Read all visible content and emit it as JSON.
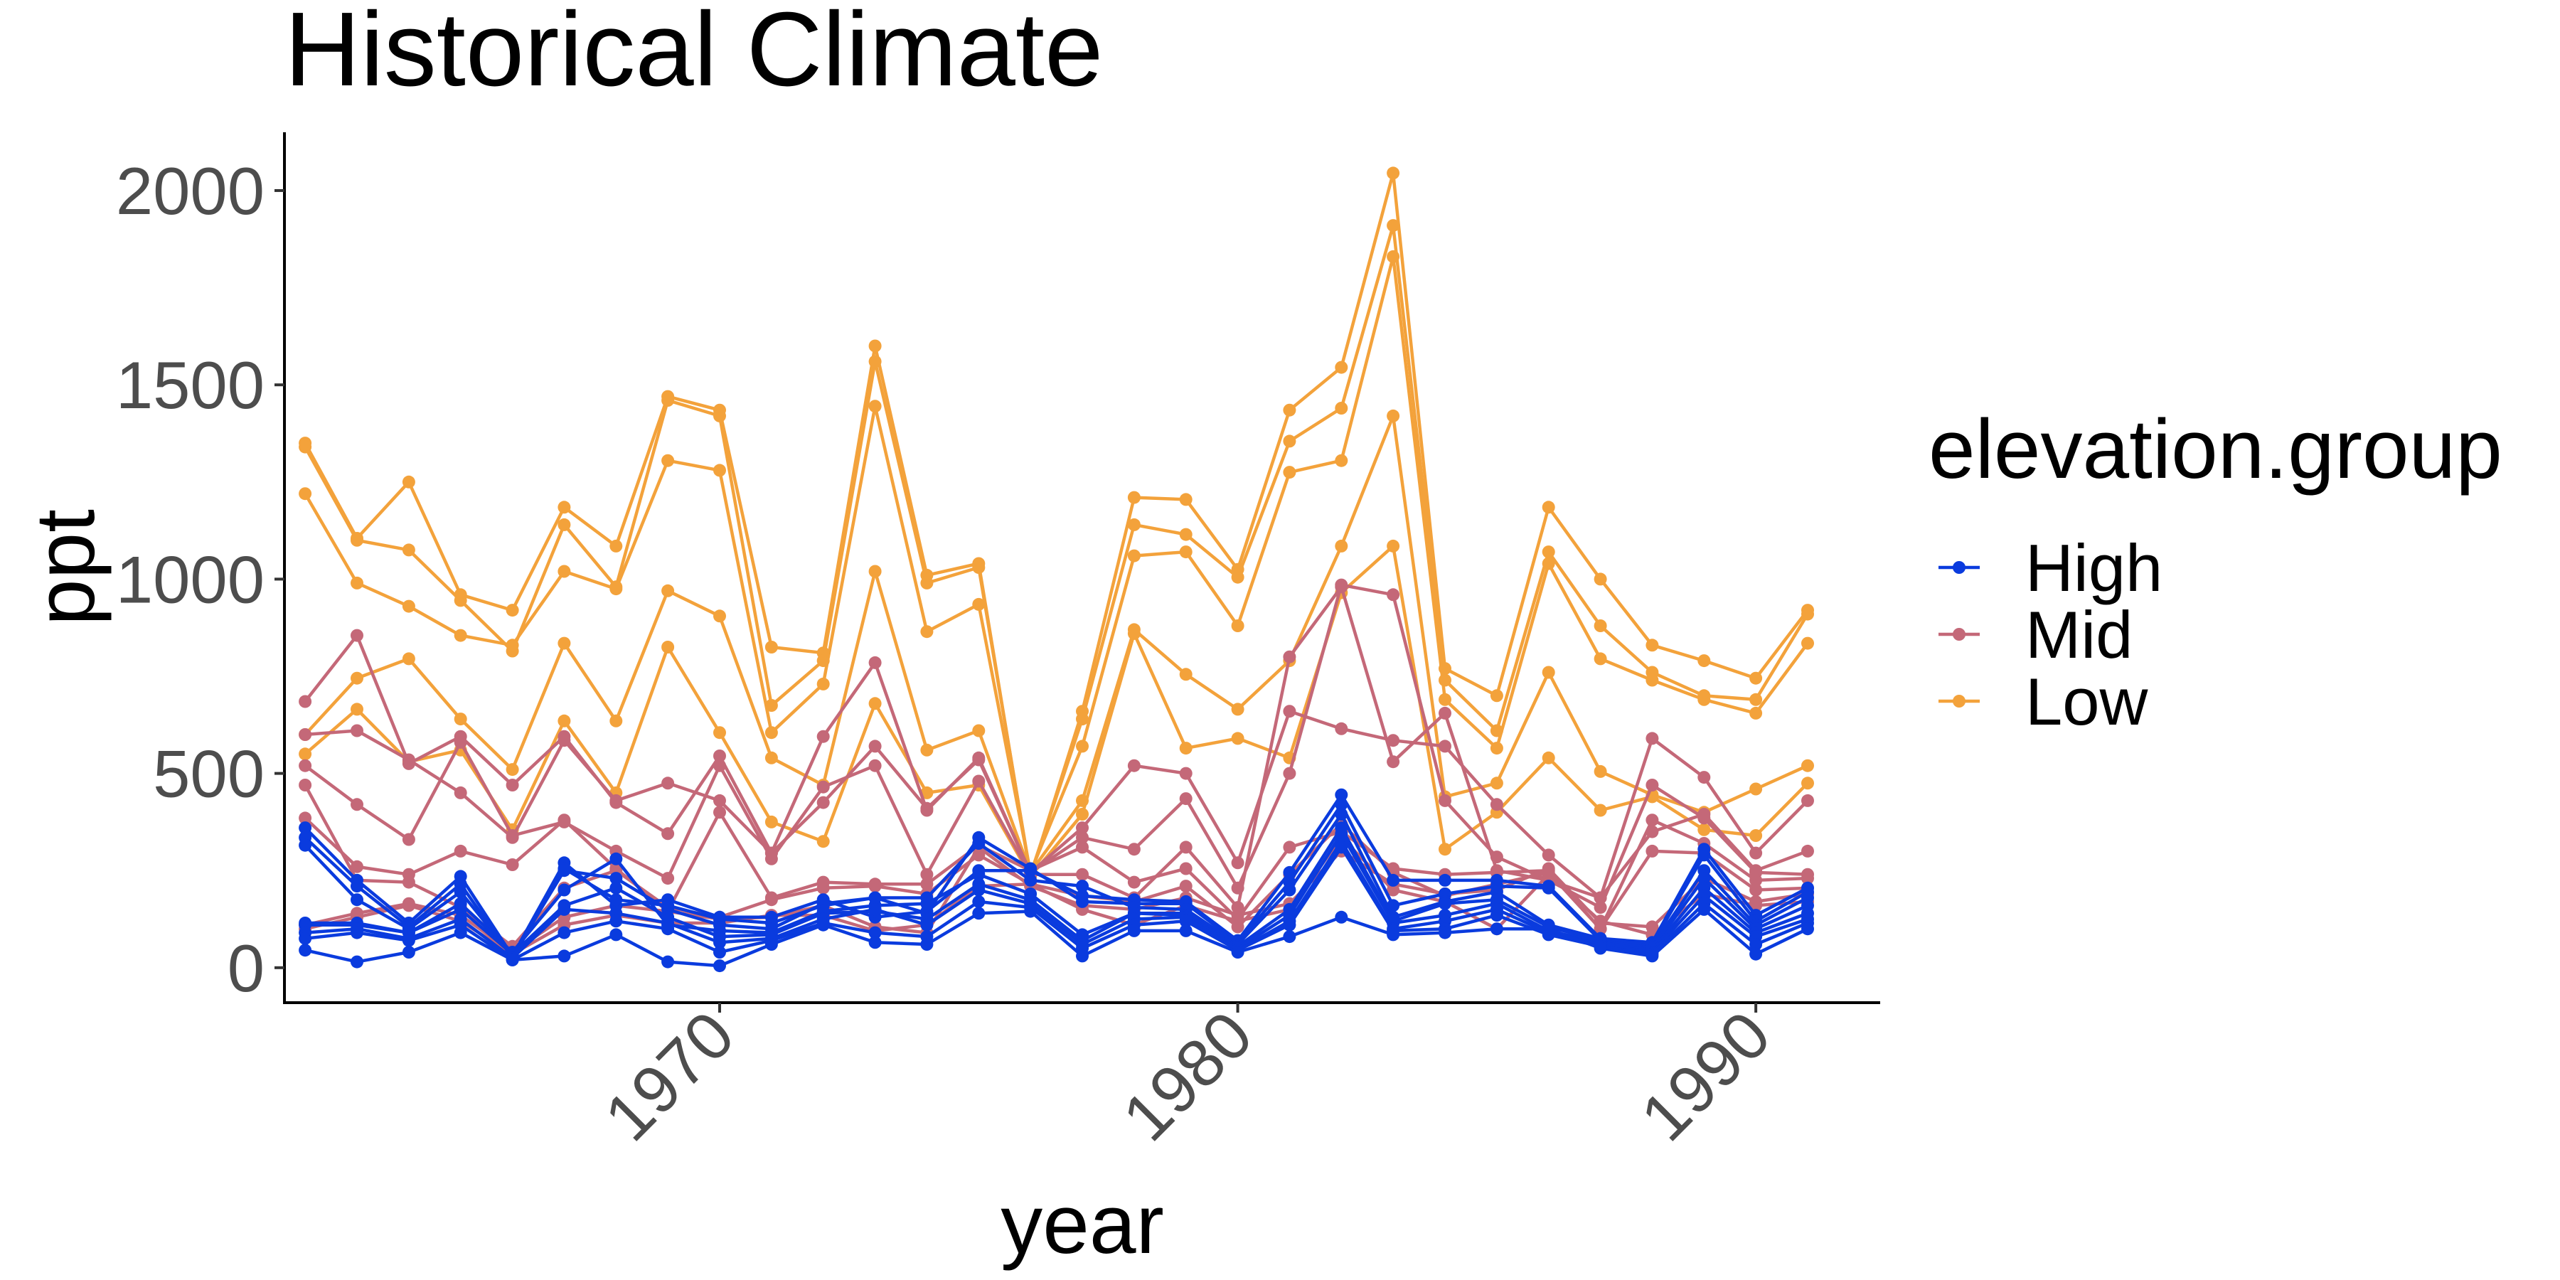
{
  "chart_data": {
    "type": "line",
    "title": "Historical Climate",
    "xlabel": "year",
    "ylabel": "ppt",
    "xlim": [
      1961.6,
      1992.4
    ],
    "ylim": [
      -90,
      2150
    ],
    "x_ticks": [
      1970,
      1980,
      1990
    ],
    "y_ticks": [
      0,
      500,
      1000,
      1500,
      2000
    ],
    "grid": false,
    "legend": {
      "title": "elevation.group",
      "position": "right",
      "entries": [
        {
          "label": "High",
          "color": "#0a3bde"
        },
        {
          "label": "Mid",
          "color": "#c46878"
        },
        {
          "label": "Low",
          "color": "#f3a23b"
        }
      ]
    },
    "x": [
      1962,
      1963,
      1964,
      1965,
      1966,
      1967,
      1968,
      1969,
      1970,
      1971,
      1972,
      1973,
      1974,
      1975,
      1976,
      1977,
      1978,
      1979,
      1980,
      1981,
      1982,
      1983,
      1984,
      1985,
      1986,
      1987,
      1988,
      1989,
      1990,
      1991
    ],
    "series": [
      {
        "group": "Low",
        "color": "#f3a23b",
        "values": [
          1350,
          1105,
          1250,
          960,
          920,
          1185,
          1085,
          1470,
          1435,
          825,
          810,
          1600,
          1010,
          1040,
          235,
          660,
          1210,
          1205,
          1025,
          1435,
          1545,
          2045,
          770,
          700,
          1185,
          1000,
          830,
          790,
          745,
          920
        ]
      },
      {
        "group": "Low",
        "color": "#f3a23b",
        "values": [
          1340,
          1100,
          1075,
          945,
          815,
          1140,
          980,
          1460,
          1420,
          675,
          790,
          1560,
          990,
          1030,
          240,
          640,
          1140,
          1115,
          1005,
          1355,
          1440,
          1910,
          740,
          610,
          1070,
          880,
          760,
          700,
          690,
          910
        ]
      },
      {
        "group": "Low",
        "color": "#f3a23b",
        "values": [
          1220,
          990,
          930,
          855,
          830,
          1020,
          975,
          1305,
          1280,
          605,
          730,
          1445,
          865,
          935,
          245,
          570,
          1060,
          1070,
          880,
          1275,
          1305,
          1830,
          690,
          565,
          1040,
          795,
          740,
          690,
          655,
          835
        ]
      },
      {
        "group": "Low",
        "color": "#f3a23b",
        "values": [
          600,
          745,
          795,
          640,
          510,
          835,
          635,
          970,
          905,
          540,
          470,
          1020,
          560,
          610,
          245,
          430,
          870,
          755,
          665,
          790,
          1085,
          1420,
          440,
          475,
          760,
          505,
          445,
          400,
          460,
          520
        ]
      },
      {
        "group": "Low",
        "color": "#f3a23b",
        "values": [
          550,
          665,
          530,
          560,
          355,
          635,
          450,
          825,
          605,
          375,
          325,
          680,
          450,
          470,
          235,
          395,
          860,
          565,
          590,
          540,
          965,
          1085,
          305,
          400,
          540,
          405,
          440,
          355,
          340,
          475
        ]
      },
      {
        "group": "Mid",
        "color": "#c46878",
        "values": [
          685,
          855,
          525,
          595,
          470,
          595,
          425,
          345,
          545,
          295,
          595,
          785,
          405,
          540,
          245,
          360,
          520,
          500,
          270,
          660,
          615,
          585,
          570,
          420,
          290,
          180,
          590,
          490,
          295,
          430
        ]
      },
      {
        "group": "Mid",
        "color": "#c46878",
        "values": [
          600,
          610,
          535,
          450,
          335,
          585,
          430,
          475,
          430,
          295,
          425,
          570,
          410,
          535,
          245,
          335,
          305,
          435,
          205,
          500,
          985,
          960,
          430,
          285,
          225,
          180,
          350,
          395,
          250,
          300
        ]
      },
      {
        "group": "Mid",
        "color": "#c46878",
        "values": [
          520,
          420,
          330,
          580,
          340,
          375,
          300,
          230,
          520,
          280,
          465,
          520,
          240,
          480,
          240,
          240,
          180,
          310,
          155,
          800,
          980,
          530,
          655,
          250,
          225,
          155,
          470,
          385,
          245,
          240
        ]
      },
      {
        "group": "Mid",
        "color": "#c46878",
        "values": [
          385,
          260,
          240,
          300,
          265,
          380,
          255,
          145,
          400,
          180,
          220,
          215,
          215,
          315,
          250,
          310,
          220,
          255,
          125,
          310,
          350,
          255,
          240,
          245,
          250,
          100,
          380,
          320,
          225,
          230
        ]
      },
      {
        "group": "Mid",
        "color": "#c46878",
        "values": [
          470,
          225,
          220,
          155,
          55,
          205,
          250,
          155,
          130,
          175,
          205,
          210,
          190,
          290,
          215,
          185,
          170,
          210,
          105,
          240,
          370,
          245,
          185,
          215,
          245,
          100,
          300,
          295,
          200,
          205
        ]
      },
      {
        "group": "Mid",
        "color": "#c46878",
        "values": [
          110,
          140,
          165,
          135,
          40,
          130,
          160,
          145,
          125,
          130,
          160,
          105,
          90,
          310,
          210,
          160,
          150,
          180,
          135,
          165,
          300,
          215,
          190,
          200,
          255,
          115,
          105,
          230,
          170,
          190
        ]
      },
      {
        "group": "Mid",
        "color": "#c46878",
        "values": [
          100,
          130,
          160,
          120,
          35,
          110,
          135,
          115,
          115,
          135,
          135,
          95,
          110,
          210,
          215,
          150,
          110,
          160,
          120,
          150,
          335,
          200,
          170,
          100,
          240,
          120,
          85,
          190,
          160,
          170
        ]
      },
      {
        "group": "High",
        "color": "#0a3bde",
        "values": [
          360,
          225,
          115,
          235,
          30,
          270,
          160,
          175,
          130,
          130,
          175,
          130,
          145,
          250,
          250,
          185,
          175,
          170,
          70,
          245,
          445,
          225,
          225,
          225,
          210,
          75,
          65,
          305,
          135,
          205
        ]
      },
      {
        "group": "High",
        "color": "#0a3bde",
        "values": [
          335,
          210,
          105,
          215,
          25,
          255,
          175,
          160,
          125,
          115,
          160,
          180,
          140,
          335,
          255,
          170,
          165,
          165,
          65,
          220,
          420,
          160,
          190,
          210,
          205,
          70,
          60,
          290,
          120,
          195
        ]
      },
      {
        "group": "High",
        "color": "#0a3bde",
        "values": [
          315,
          175,
          100,
          195,
          30,
          250,
          230,
          150,
          110,
          100,
          165,
          180,
          180,
          320,
          225,
          210,
          155,
          150,
          60,
          200,
          395,
          130,
          170,
          195,
          110,
          75,
          55,
          250,
          110,
          180
        ]
      },
      {
        "group": "High",
        "color": "#0a3bde",
        "values": [
          115,
          115,
          90,
          165,
          40,
          200,
          280,
          110,
          95,
          90,
          145,
          160,
          165,
          240,
          190,
          85,
          140,
          140,
          55,
          150,
          360,
          120,
          165,
          175,
          105,
          70,
          50,
          230,
          100,
          160
        ]
      },
      {
        "group": "High",
        "color": "#0a3bde",
        "values": [
          110,
          110,
          90,
          150,
          35,
          160,
          205,
          130,
          80,
          85,
          140,
          145,
          125,
          215,
          175,
          70,
          140,
          135,
          50,
          135,
          345,
          115,
          135,
          165,
          95,
          65,
          45,
          205,
          90,
          140
        ]
      },
      {
        "group": "High",
        "color": "#0a3bde",
        "values": [
          90,
          100,
          75,
          125,
          25,
          150,
          140,
          115,
          65,
          75,
          125,
          150,
          110,
          200,
          165,
          60,
          125,
          130,
          45,
          120,
          325,
          100,
          120,
          150,
          90,
          60,
          40,
          185,
          80,
          125
        ]
      },
      {
        "group": "High",
        "color": "#0a3bde",
        "values": [
          75,
          90,
          70,
          110,
          20,
          90,
          120,
          100,
          40,
          70,
          115,
          90,
          80,
          170,
          155,
          50,
          110,
          120,
          45,
          110,
          310,
          95,
          100,
          135,
          85,
          55,
          35,
          165,
          60,
          115
        ]
      },
      {
        "group": "High",
        "color": "#0a3bde",
        "values": [
          45,
          15,
          40,
          90,
          20,
          30,
          85,
          15,
          5,
          60,
          110,
          65,
          60,
          140,
          145,
          30,
          95,
          95,
          40,
          80,
          130,
          85,
          90,
          100,
          100,
          50,
          30,
          150,
          35,
          100
        ]
      }
    ]
  }
}
